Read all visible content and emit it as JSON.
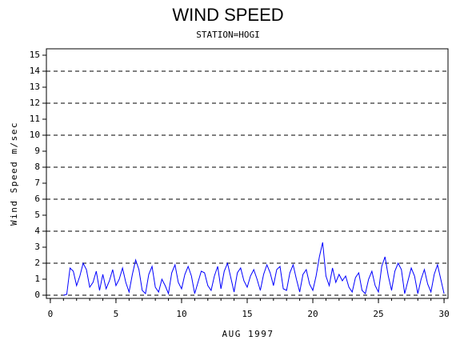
{
  "chart_data": {
    "type": "line",
    "title": "WIND SPEED",
    "subtitle": "STATION=HOGI",
    "x_label": "AUG 1997",
    "y_label": "Wind Speed m/sec",
    "xlim": [
      -0.3,
      30.3
    ],
    "xticks": [
      0,
      5,
      10,
      15,
      20,
      25,
      30
    ],
    "ylim": [
      -0.2,
      15.4
    ],
    "yticks": [
      0,
      1,
      2,
      3,
      4,
      5,
      6,
      7,
      8,
      9,
      10,
      11,
      12,
      13,
      14,
      15
    ],
    "grid": "dashed",
    "x": [
      1,
      1.25,
      1.5,
      1.75,
      2,
      2.25,
      2.5,
      2.75,
      3,
      3.25,
      3.5,
      3.75,
      4,
      4.25,
      4.5,
      4.75,
      5,
      5.25,
      5.5,
      5.75,
      6,
      6.25,
      6.5,
      6.75,
      7,
      7.25,
      7.5,
      7.75,
      8,
      8.25,
      8.5,
      8.75,
      9,
      9.25,
      9.5,
      9.75,
      10,
      10.25,
      10.5,
      10.75,
      11,
      11.25,
      11.5,
      11.75,
      12,
      12.25,
      12.5,
      12.75,
      13,
      13.25,
      13.5,
      13.75,
      14,
      14.25,
      14.5,
      14.75,
      15,
      15.25,
      15.5,
      15.75,
      16,
      16.25,
      16.5,
      16.75,
      17,
      17.25,
      17.5,
      17.75,
      18,
      18.25,
      18.5,
      18.75,
      19,
      19.25,
      19.5,
      19.75,
      20,
      20.25,
      20.5,
      20.75,
      21,
      21.25,
      21.5,
      21.75,
      22,
      22.25,
      22.5,
      22.75,
      23,
      23.25,
      23.5,
      23.75,
      24,
      24.25,
      24.5,
      24.75,
      25,
      25.25,
      25.5,
      25.75,
      26,
      26.25,
      26.5,
      26.75,
      27,
      27.25,
      27.5,
      27.75,
      28,
      28.25,
      28.5,
      28.75,
      29,
      29.25,
      29.5,
      29.75,
      30
    ],
    "series": [
      {
        "name": "Wind Speed",
        "color": "#0000ff",
        "values": [
          0,
          0.05,
          1.7,
          1.5,
          0.6,
          1.2,
          2.0,
          1.6,
          0.5,
          0.8,
          1.5,
          0.3,
          1.3,
          0.4,
          0.9,
          1.6,
          0.6,
          1.0,
          1.7,
          0.8,
          0.2,
          1.3,
          2.2,
          1.6,
          0.3,
          0.1,
          1.3,
          1.8,
          0.5,
          0.2,
          1.0,
          0.6,
          0.1,
          1.4,
          1.9,
          0.8,
          0.4,
          1.3,
          1.8,
          1.2,
          0.1,
          0.8,
          1.5,
          1.4,
          0.6,
          0.3,
          1.2,
          1.8,
          0.4,
          1.5,
          2.0,
          1.1,
          0.2,
          1.4,
          1.7,
          0.9,
          0.5,
          1.2,
          1.6,
          1.0,
          0.3,
          1.3,
          1.9,
          1.4,
          0.6,
          1.6,
          1.8,
          0.4,
          0.3,
          1.4,
          1.9,
          1.0,
          0.2,
          1.3,
          1.6,
          0.7,
          0.3,
          1.2,
          2.4,
          3.3,
          1.2,
          0.6,
          1.7,
          0.8,
          1.3,
          0.9,
          1.2,
          0.5,
          0.2,
          1.1,
          1.4,
          0.3,
          0.1,
          1.0,
          1.5,
          0.6,
          0.2,
          1.8,
          2.4,
          1.2,
          0.3,
          1.5,
          2.0,
          1.6,
          0.1,
          0.9,
          1.7,
          1.2,
          0.1,
          1.0,
          1.6,
          0.7,
          0.2,
          1.3,
          1.9,
          1.0,
          0.1
        ]
      }
    ]
  }
}
